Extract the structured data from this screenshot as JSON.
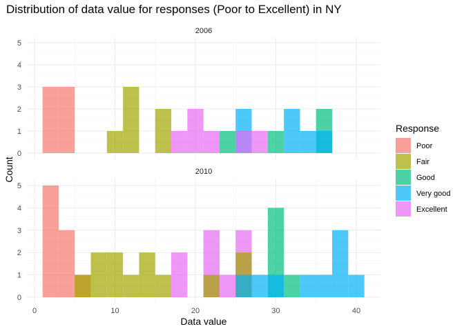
{
  "chart_data": {
    "type": "histogram",
    "title": "Distribution of data value for responses (Poor to Excellent) in NY",
    "xlabel": "Data value",
    "ylabel": "Count",
    "xlim": [
      0,
      43
    ],
    "ylim": [
      0,
      5
    ],
    "x_ticks": [
      0,
      10,
      20,
      30,
      40
    ],
    "y_ticks": [
      0,
      1,
      2,
      3,
      4,
      5
    ],
    "bin_width": 2,
    "grid": true,
    "legend": {
      "title": "Response",
      "position": "right",
      "entries": [
        "Poor",
        "Fair",
        "Good",
        "Very good",
        "Excellent"
      ]
    },
    "colors": {
      "Poor": "#F8766D",
      "Fair": "#A3A500",
      "Good": "#00BF7D",
      "Very good": "#00B0F6",
      "Excellent": "#E76BF3"
    },
    "facets": [
      {
        "label": "2006",
        "bars": [
          {
            "series": "Poor",
            "x0": 1,
            "x1": 3,
            "count": 3
          },
          {
            "series": "Poor",
            "x0": 3,
            "x1": 5,
            "count": 3
          },
          {
            "series": "Fair",
            "x0": 9,
            "x1": 11,
            "count": 1
          },
          {
            "series": "Fair",
            "x0": 11,
            "x1": 13,
            "count": 3
          },
          {
            "series": "Fair",
            "x0": 15,
            "x1": 17,
            "count": 2
          },
          {
            "series": "Excellent",
            "x0": 17,
            "x1": 19,
            "count": 1
          },
          {
            "series": "Excellent",
            "x0": 19,
            "x1": 21,
            "count": 2
          },
          {
            "series": "Excellent",
            "x0": 21,
            "x1": 23,
            "count": 1
          },
          {
            "series": "Good",
            "x0": 23,
            "x1": 25,
            "count": 1
          },
          {
            "series": "Very good",
            "x0": 25,
            "x1": 27,
            "count": 2
          },
          {
            "series": "Excellent",
            "x0": 25,
            "x1": 27,
            "count": 1
          },
          {
            "series": "Excellent",
            "x0": 27,
            "x1": 29,
            "count": 1
          },
          {
            "series": "Good",
            "x0": 29,
            "x1": 31,
            "count": 1
          },
          {
            "series": "Very good",
            "x0": 31,
            "x1": 33,
            "count": 2
          },
          {
            "series": "Very good",
            "x0": 33,
            "x1": 35,
            "count": 1
          },
          {
            "series": "Good",
            "x0": 35,
            "x1": 37,
            "count": 2
          },
          {
            "series": "Very good",
            "x0": 35,
            "x1": 37,
            "count": 1
          }
        ]
      },
      {
        "label": "2010",
        "bars": [
          {
            "series": "Poor",
            "x0": 1,
            "x1": 3,
            "count": 5
          },
          {
            "series": "Poor",
            "x0": 3,
            "x1": 5,
            "count": 3
          },
          {
            "series": "Poor",
            "x0": 5,
            "x1": 7,
            "count": 1
          },
          {
            "series": "Fair",
            "x0": 5,
            "x1": 7,
            "count": 1
          },
          {
            "series": "Fair",
            "x0": 7,
            "x1": 9,
            "count": 2
          },
          {
            "series": "Fair",
            "x0": 9,
            "x1": 11,
            "count": 2
          },
          {
            "series": "Fair",
            "x0": 11,
            "x1": 13,
            "count": 1
          },
          {
            "series": "Fair",
            "x0": 13,
            "x1": 15,
            "count": 2
          },
          {
            "series": "Fair",
            "x0": 15,
            "x1": 17,
            "count": 1
          },
          {
            "series": "Excellent",
            "x0": 17,
            "x1": 19,
            "count": 2
          },
          {
            "series": "Excellent",
            "x0": 21,
            "x1": 23,
            "count": 3
          },
          {
            "series": "Fair",
            "x0": 21,
            "x1": 23,
            "count": 1
          },
          {
            "series": "Excellent",
            "x0": 23,
            "x1": 25,
            "count": 1
          },
          {
            "series": "Excellent",
            "x0": 25,
            "x1": 27,
            "count": 3
          },
          {
            "series": "Fair",
            "x0": 25,
            "x1": 27,
            "count": 2
          },
          {
            "series": "Very good",
            "x0": 25,
            "x1": 27,
            "count": 1
          },
          {
            "series": "Very good",
            "x0": 27,
            "x1": 29,
            "count": 1
          },
          {
            "series": "Good",
            "x0": 29,
            "x1": 31,
            "count": 4
          },
          {
            "series": "Very good",
            "x0": 29,
            "x1": 31,
            "count": 1
          },
          {
            "series": "Good",
            "x0": 31,
            "x1": 33,
            "count": 1
          },
          {
            "series": "Very good",
            "x0": 33,
            "x1": 35,
            "count": 1
          },
          {
            "series": "Very good",
            "x0": 35,
            "x1": 37,
            "count": 1
          },
          {
            "series": "Very good",
            "x0": 37,
            "x1": 39,
            "count": 3
          },
          {
            "series": "Very good",
            "x0": 39,
            "x1": 41,
            "count": 1
          }
        ]
      }
    ]
  }
}
